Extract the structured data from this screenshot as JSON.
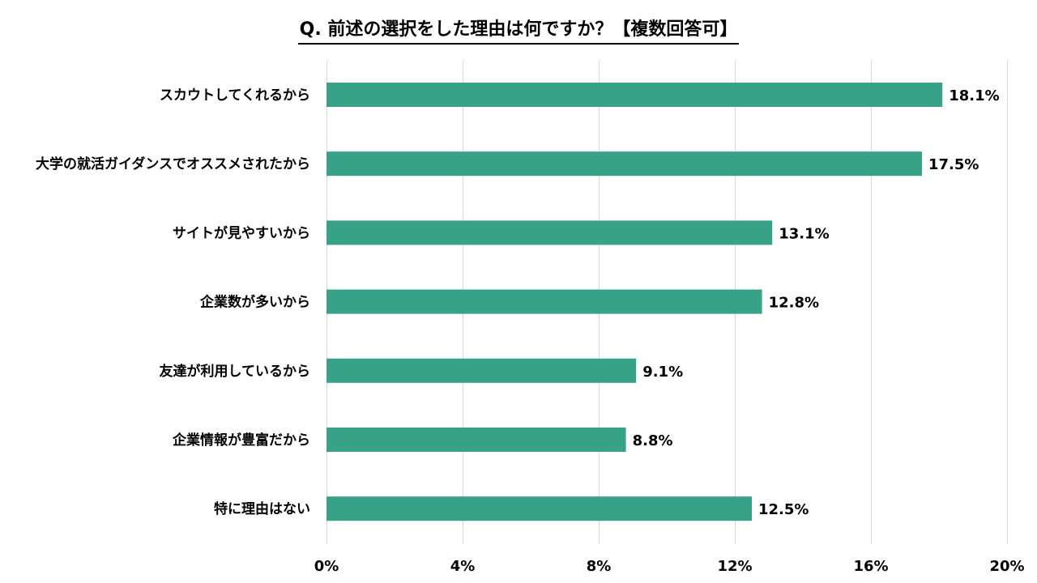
{
  "chart_data": {
    "type": "bar",
    "orientation": "horizontal",
    "title": "Q. 前述の選択をした理由は何ですか？【複数回答可】",
    "categories": [
      "スカウトしてくれるから",
      "大学の就活ガイダンスでオススメされたから",
      "サイトが見やすいから",
      "企業数が多いから",
      "友達が利用しているから",
      "企業情報が豊富だから",
      "特に理由はない"
    ],
    "values": [
      18.1,
      17.5,
      13.1,
      12.8,
      9.1,
      8.8,
      12.5
    ],
    "value_labels": [
      "18.1%",
      "17.5%",
      "13.1%",
      "12.8%",
      "9.1%",
      "8.8%",
      "12.5%"
    ],
    "xlim": [
      0,
      20
    ],
    "x_ticks": [
      0,
      4,
      8,
      12,
      16,
      20
    ],
    "x_tick_labels": [
      "0%",
      "4%",
      "8%",
      "12%",
      "16%",
      "20%"
    ],
    "grid": true,
    "legend": "none",
    "bar_color": "#38a288",
    "grid_color": "#d9d9d9"
  }
}
